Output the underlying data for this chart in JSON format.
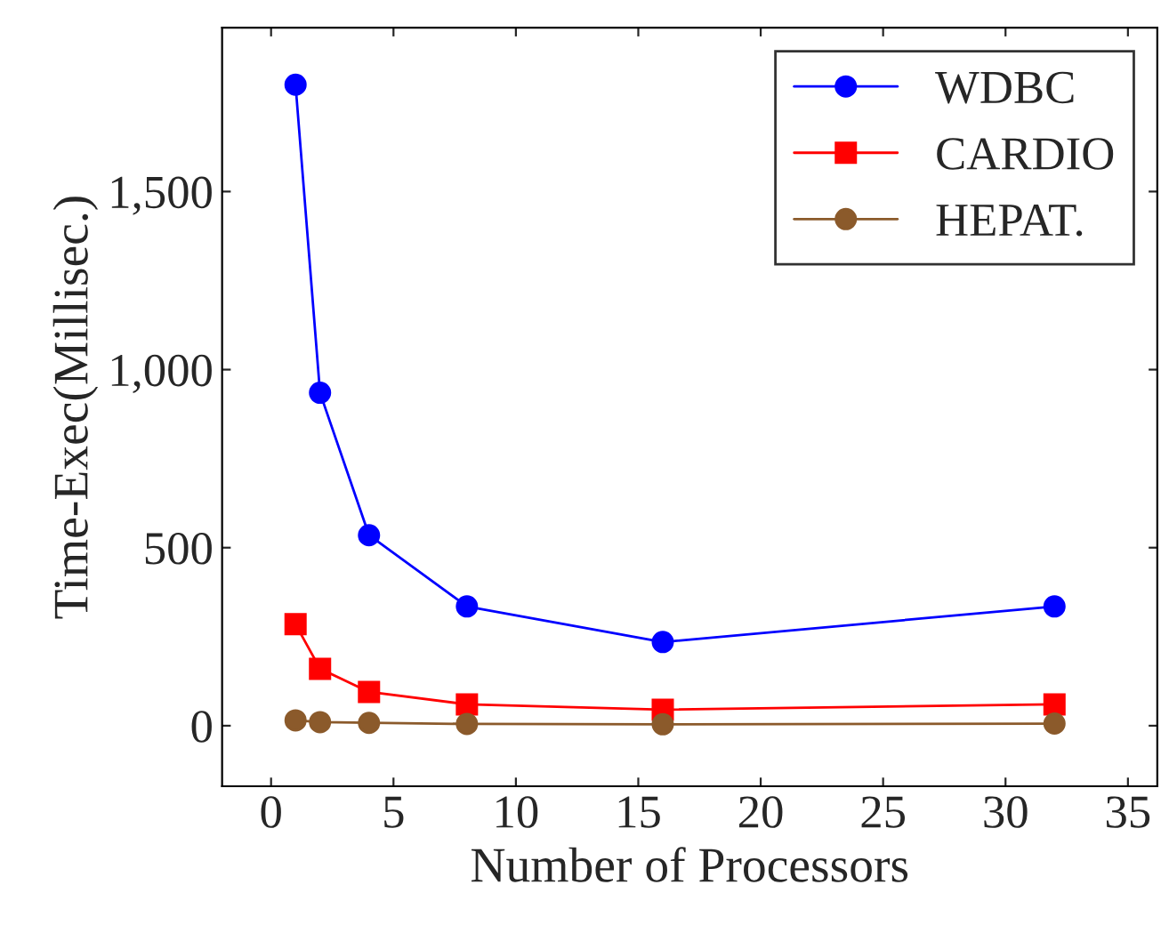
{
  "chart_data": {
    "type": "line",
    "xlabel": "Number of Processors",
    "ylabel": "Time-Exec(Millisec.)",
    "x": [
      1,
      2,
      4,
      8,
      16,
      32
    ],
    "series": [
      {
        "name": "WDBC",
        "color": "#0000ff",
        "marker": "circle",
        "values": [
          1800,
          935,
          535,
          335,
          235,
          335
        ]
      },
      {
        "name": "CARDIO",
        "color": "#ff0000",
        "marker": "square",
        "values": [
          285,
          160,
          95,
          60,
          45,
          60
        ]
      },
      {
        "name": "HEPAT.",
        "color": "#8b5a2b",
        "marker": "circle",
        "values": [
          15,
          10,
          8,
          5,
          4,
          6
        ]
      }
    ],
    "xlim": [
      -2,
      36.2
    ],
    "xticks": [
      0,
      5,
      10,
      15,
      20,
      25,
      30,
      35
    ],
    "ylim": [
      -170,
      1960
    ],
    "yticks": [
      0,
      500,
      {
        "value": 1000,
        "label": "1,000"
      },
      {
        "value": 1500,
        "label": "1,500"
      }
    ],
    "grid": false,
    "legend": "top right",
    "line_style": "solid"
  }
}
